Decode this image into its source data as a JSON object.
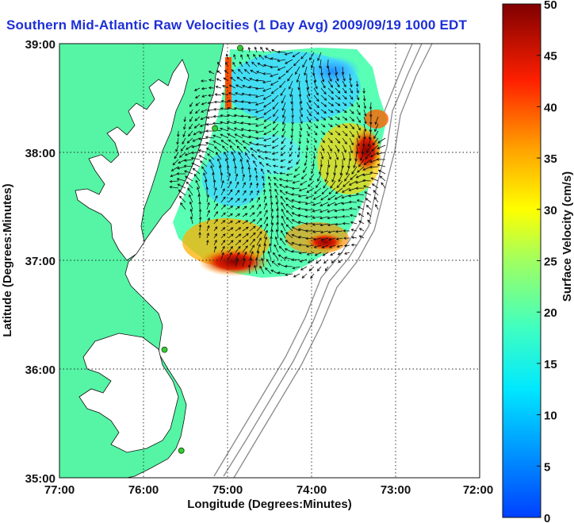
{
  "title": "Southern Mid-Atlantic Raw Velocities (1 Day Avg) 2009/09/19 1000 EDT",
  "x_axis": {
    "label": "Longitude (Degrees:Minutes)",
    "ticks": [
      "77:00",
      "76:00",
      "75:00",
      "74:00",
      "73:00",
      "72:00"
    ]
  },
  "y_axis": {
    "label": "Latitude (Degrees:Minutes)",
    "ticks": [
      "39:00",
      "38:00",
      "37:00",
      "36:00",
      "35:00"
    ]
  },
  "colorbar": {
    "label": "Surface Velocity (cm/s)",
    "ticks": [
      "50",
      "45",
      "40",
      "35",
      "30",
      "25",
      "20",
      "15",
      "10",
      "5",
      "0"
    ],
    "min": 0,
    "max": 50,
    "colormap": "jet"
  },
  "colors": {
    "land": "#55f5a5",
    "water": "#ffffff",
    "title": "#1d2fd6",
    "isobath": "#8a8a8a",
    "station": "#33cc33"
  },
  "map": {
    "lon_range": [
      -77,
      -72
    ],
    "lat_range": [
      35,
      39
    ],
    "grid": "dotted",
    "stations": [
      {
        "lon": -74.85,
        "lat": 38.96
      },
      {
        "lon": -75.15,
        "lat": 38.22
      },
      {
        "lon": -75.75,
        "lat": 36.18
      },
      {
        "lon": -75.55,
        "lat": 35.25
      }
    ]
  }
}
